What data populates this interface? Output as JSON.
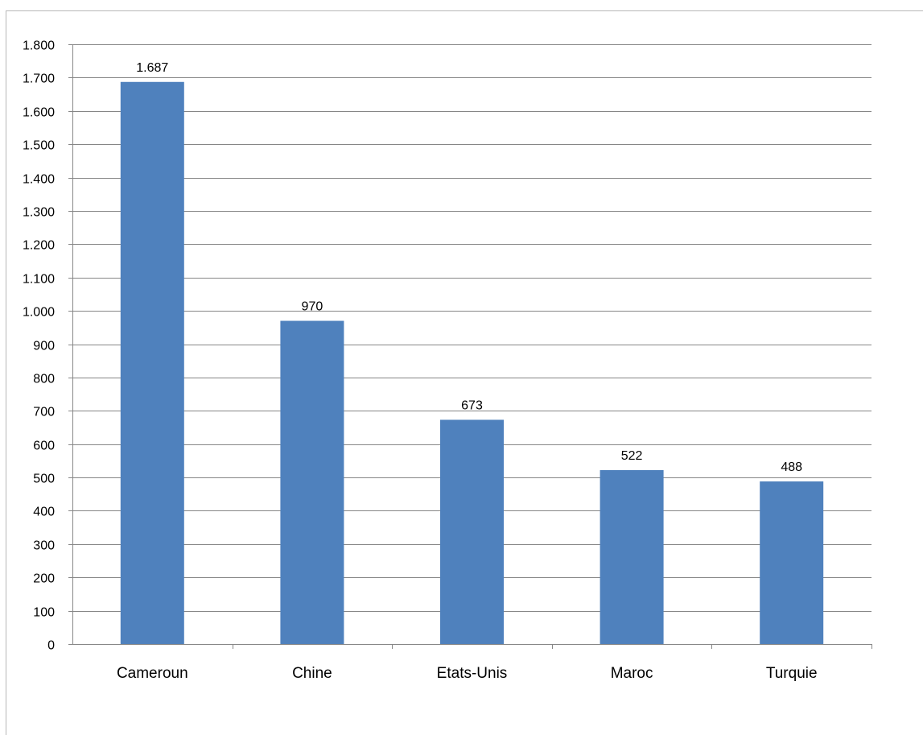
{
  "chart_data": {
    "type": "bar",
    "categories": [
      "Cameroun",
      "Chine",
      "Etats-Unis",
      "Maroc",
      "Turquie"
    ],
    "values": [
      1687,
      970,
      673,
      522,
      488
    ],
    "data_labels": [
      "1.687",
      "970",
      "673",
      "522",
      "488"
    ],
    "ylim": [
      0,
      1800
    ],
    "y_ticks": [
      0,
      100,
      200,
      300,
      400,
      500,
      600,
      700,
      800,
      900,
      1000,
      1100,
      1200,
      1300,
      1400,
      1500,
      1600,
      1700,
      1800
    ],
    "y_tick_labels": [
      "0",
      "100",
      "200",
      "300",
      "400",
      "500",
      "600",
      "700",
      "800",
      "900",
      "1.000",
      "1.100",
      "1.200",
      "1.300",
      "1.400",
      "1.500",
      "1.600",
      "1.700",
      "1.800"
    ],
    "grid": true,
    "legend": "none",
    "colors": {
      "bar": "#4f81bd",
      "grid": "#868686",
      "axis": "#868686",
      "frame": "#b7b7b7"
    }
  }
}
